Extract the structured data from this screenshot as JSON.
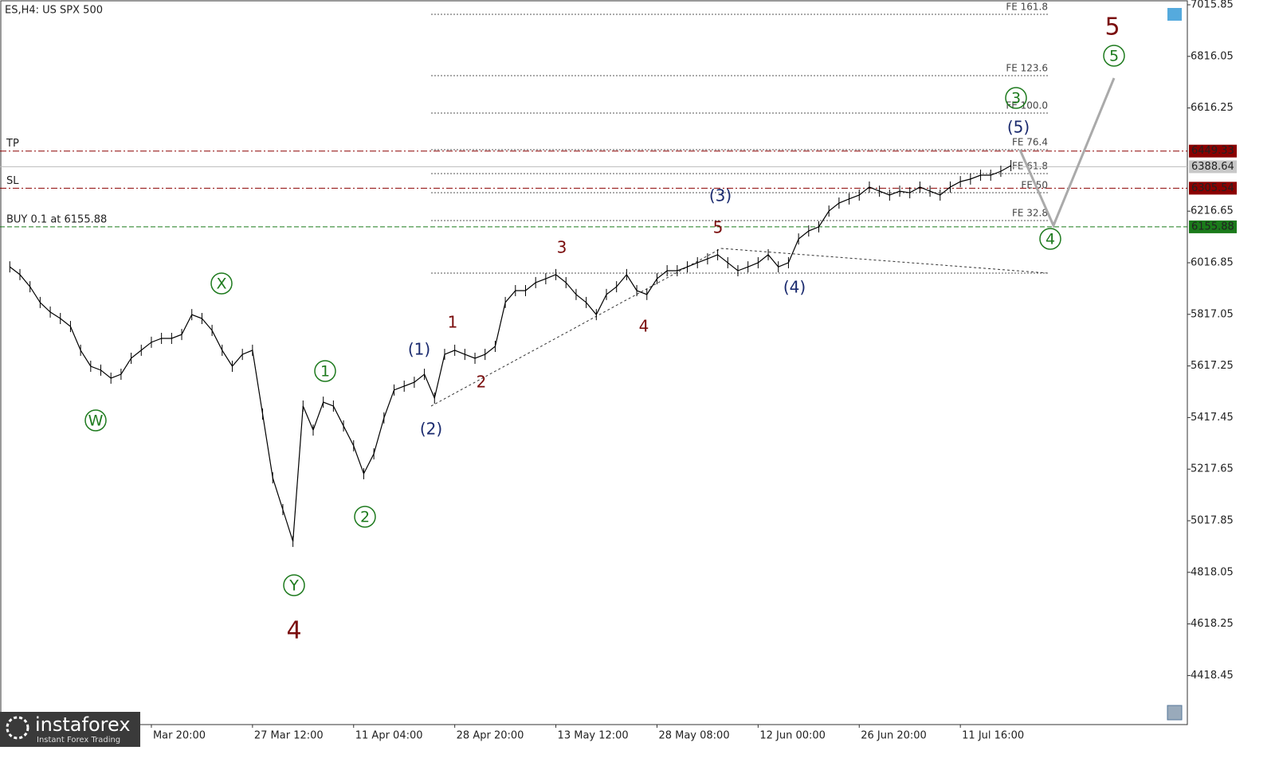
{
  "chart_data": {
    "type": "line",
    "title": "ES,H4:  US SPX 500",
    "categories": [
      null,
      null,
      null,
      null,
      null,
      null,
      null,
      null,
      null,
      null,
      null,
      null,
      null,
      null,
      "Mar 20:00",
      null,
      null,
      null,
      null,
      null,
      null,
      null,
      null,
      null,
      "27 Mar 12:00",
      null,
      null,
      null,
      null,
      null,
      null,
      null,
      null,
      null,
      "11 Apr 04:00",
      null,
      null,
      null,
      null,
      null,
      null,
      null,
      null,
      null,
      "28 Apr 20:00",
      null,
      null,
      null,
      null,
      null,
      null,
      null,
      null,
      null,
      "13 May 12:00",
      null,
      null,
      null,
      null,
      null,
      null,
      null,
      null,
      null,
      "28 May 08:00",
      null,
      null,
      null,
      null,
      null,
      null,
      null,
      null,
      null,
      "12 Jun 00:00",
      null,
      null,
      null,
      null,
      null,
      null,
      null,
      null,
      null,
      "26 Jun 20:00",
      null,
      null,
      null,
      null,
      null,
      null,
      null,
      null,
      null,
      "11 Jul 16:00",
      null,
      null,
      null,
      null,
      null
    ],
    "values": [
      6001,
      5971,
      5924,
      5863,
      5826,
      5801,
      5770,
      5678,
      5616,
      5601,
      5570,
      5585,
      5647,
      5678,
      5709,
      5724,
      5724,
      5739,
      5816,
      5801,
      5755,
      5678,
      5616,
      5662,
      5678,
      5431,
      5184,
      5061,
      4938,
      5462,
      5369,
      5477,
      5462,
      5385,
      5308,
      5200,
      5277,
      5416,
      5524,
      5539,
      5554,
      5585,
      5493,
      5662,
      5678,
      5662,
      5647,
      5662,
      5693,
      5863,
      5909,
      5909,
      5940,
      5955,
      5971,
      5940,
      5894,
      5863,
      5816,
      5894,
      5924,
      5971,
      5909,
      5894,
      5955,
      5986,
      5986,
      6001,
      6017,
      6032,
      6048,
      6017,
      5986,
      6001,
      6017,
      6048,
      6001,
      6017,
      6109,
      6140,
      6156,
      6217,
      6248,
      6264,
      6279,
      6310,
      6294,
      6279,
      6294,
      6288,
      6310,
      6294,
      6279,
      6310,
      6331,
      6341,
      6356,
      6356,
      6371,
      6393
    ],
    "color": "#000000",
    "ylim": [
      4228.5,
      7034.35
    ],
    "yticks": [
      7015.85,
      6816.05,
      6616.25,
      6216.65,
      6016.85,
      5817.05,
      5617.25,
      5417.45,
      5217.65,
      5017.85,
      4818.05,
      4618.25,
      4418.45
    ],
    "trade_levels": [
      {
        "label": "TP",
        "value": 6449.33,
        "color": "#8b0000"
      },
      {
        "label": "SL",
        "value": 6305.54,
        "color": "#8b0000"
      },
      {
        "label": "BUY 0.1 at 6155.88",
        "value": 6155.88,
        "color": "#1a7a1a"
      }
    ],
    "current_price": 6388.64,
    "fe_levels": [
      {
        "label": "FE 161.8",
        "value": 6978.8
      },
      {
        "label": "FE 123.6",
        "value": 6741.4
      },
      {
        "label": "FE 100.0",
        "value": 6596.5
      },
      {
        "label": "FE 76.4",
        "value": 6454.7
      },
      {
        "label": "FE 61.8",
        "value": 6362.2
      },
      {
        "label": "FE 50",
        "value": 6288.2
      },
      {
        "label": "FE 32.8",
        "value": 6180.3
      },
      {
        "value": 5976.8
      }
    ],
    "forecast": [
      6454,
      6161,
      6732
    ],
    "labels_circled": [
      "W",
      "X",
      "Y",
      "1",
      "2",
      "3",
      "4",
      "5"
    ],
    "labels_major": [
      "4",
      "5"
    ],
    "labels_minor": [
      "1",
      "2",
      "3",
      "4",
      "5"
    ],
    "labels_paren": [
      "(1)",
      "(2)",
      "(3)",
      "(4)",
      "(5)"
    ]
  },
  "logo": {
    "name": "instaforex",
    "tagline": "Instant Forex Trading"
  }
}
